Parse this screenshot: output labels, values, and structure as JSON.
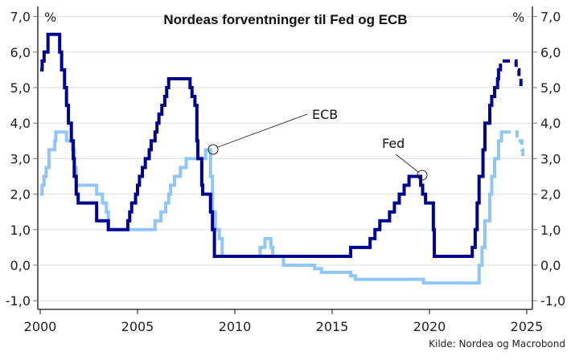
{
  "chart_data": {
    "type": "line",
    "title": "Nordeas forventninger til Fed og ECB",
    "unit_left": "%",
    "unit_right": "%",
    "xlabel": "",
    "ylabel": "%",
    "ylim": [
      -1.0,
      7.0
    ],
    "xlim": [
      2000,
      2025
    ],
    "x_ticks": [
      "2000",
      "2005",
      "2010",
      "2015",
      "2020",
      "2025"
    ],
    "y_ticks": [
      "7,0",
      "6,0",
      "5,0",
      "4,0",
      "3,0",
      "2,0",
      "1,0",
      "0,0",
      "-1,0"
    ],
    "grid": true,
    "source": "Kilde: Nordea og Macrobond",
    "annotations": [
      {
        "label": "ECB",
        "x": 2008.7,
        "y": 3.25
      },
      {
        "label": "Fed",
        "x": 2019.3,
        "y": 2.5
      }
    ],
    "series": [
      {
        "name": "Fed",
        "color": "#00008f",
        "style": "step",
        "points": [
          [
            2000.0,
            5.5
          ],
          [
            2000.1,
            5.75
          ],
          [
            2000.2,
            6.0
          ],
          [
            2000.4,
            6.5
          ],
          [
            2001.0,
            6.0
          ],
          [
            2001.1,
            5.5
          ],
          [
            2001.25,
            5.0
          ],
          [
            2001.35,
            4.5
          ],
          [
            2001.45,
            4.0
          ],
          [
            2001.6,
            3.5
          ],
          [
            2001.7,
            3.0
          ],
          [
            2001.75,
            2.5
          ],
          [
            2001.85,
            2.0
          ],
          [
            2001.95,
            1.75
          ],
          [
            2002.9,
            1.25
          ],
          [
            2003.5,
            1.0
          ],
          [
            2004.5,
            1.25
          ],
          [
            2004.6,
            1.5
          ],
          [
            2004.7,
            1.75
          ],
          [
            2004.9,
            2.0
          ],
          [
            2005.0,
            2.25
          ],
          [
            2005.1,
            2.5
          ],
          [
            2005.25,
            2.75
          ],
          [
            2005.4,
            3.0
          ],
          [
            2005.6,
            3.25
          ],
          [
            2005.7,
            3.5
          ],
          [
            2005.9,
            3.75
          ],
          [
            2006.0,
            4.0
          ],
          [
            2006.1,
            4.25
          ],
          [
            2006.25,
            4.5
          ],
          [
            2006.4,
            4.75
          ],
          [
            2006.5,
            5.0
          ],
          [
            2006.6,
            5.25
          ],
          [
            2007.7,
            5.0
          ],
          [
            2007.8,
            4.75
          ],
          [
            2007.95,
            4.5
          ],
          [
            2008.05,
            3.5
          ],
          [
            2008.1,
            3.0
          ],
          [
            2008.3,
            2.25
          ],
          [
            2008.35,
            2.0
          ],
          [
            2008.75,
            1.5
          ],
          [
            2008.85,
            1.0
          ],
          [
            2008.95,
            0.25
          ],
          [
            2015.95,
            0.5
          ],
          [
            2016.95,
            0.75
          ],
          [
            2017.2,
            1.0
          ],
          [
            2017.45,
            1.25
          ],
          [
            2017.95,
            1.5
          ],
          [
            2018.2,
            1.75
          ],
          [
            2018.45,
            2.0
          ],
          [
            2018.7,
            2.25
          ],
          [
            2018.95,
            2.5
          ],
          [
            2019.55,
            2.25
          ],
          [
            2019.65,
            2.0
          ],
          [
            2019.8,
            1.75
          ],
          [
            2020.2,
            1.0
          ],
          [
            2020.25,
            0.25
          ],
          [
            2022.2,
            0.5
          ],
          [
            2022.35,
            1.0
          ],
          [
            2022.45,
            1.75
          ],
          [
            2022.55,
            2.5
          ],
          [
            2022.75,
            3.25
          ],
          [
            2022.85,
            4.0
          ],
          [
            2023.1,
            4.5
          ],
          [
            2023.2,
            4.75
          ],
          [
            2023.35,
            5.0
          ],
          [
            2023.5,
            5.25
          ],
          [
            2023.55,
            5.5
          ]
        ],
        "forecast": [
          [
            2023.65,
            5.75
          ],
          [
            2024.0,
            5.75
          ],
          [
            2024.45,
            5.5
          ],
          [
            2024.6,
            5.25
          ],
          [
            2024.7,
            5.0
          ]
        ]
      },
      {
        "name": "ECB",
        "color": "#8fc6f5",
        "style": "step",
        "points": [
          [
            2000.0,
            2.0
          ],
          [
            2000.1,
            2.25
          ],
          [
            2000.2,
            2.5
          ],
          [
            2000.3,
            2.75
          ],
          [
            2000.45,
            3.25
          ],
          [
            2000.75,
            3.5
          ],
          [
            2000.8,
            3.75
          ],
          [
            2001.35,
            3.5
          ],
          [
            2001.65,
            3.25
          ],
          [
            2001.75,
            2.75
          ],
          [
            2001.85,
            2.25
          ],
          [
            2002.9,
            2.0
          ],
          [
            2003.2,
            1.75
          ],
          [
            2003.4,
            1.5
          ],
          [
            2003.5,
            1.0
          ],
          [
            2005.9,
            1.25
          ],
          [
            2006.2,
            1.5
          ],
          [
            2006.45,
            1.75
          ],
          [
            2006.6,
            2.0
          ],
          [
            2006.7,
            2.25
          ],
          [
            2006.9,
            2.5
          ],
          [
            2007.2,
            2.75
          ],
          [
            2007.5,
            3.0
          ],
          [
            2008.5,
            3.25
          ],
          [
            2008.75,
            2.5
          ],
          [
            2008.85,
            1.5
          ],
          [
            2009.0,
            1.0
          ],
          [
            2009.2,
            0.75
          ],
          [
            2009.35,
            0.25
          ],
          [
            2011.3,
            0.5
          ],
          [
            2011.55,
            0.75
          ],
          [
            2011.85,
            0.5
          ],
          [
            2011.95,
            0.25
          ],
          [
            2012.5,
            0.0
          ],
          [
            2014.1,
            -0.1
          ],
          [
            2014.45,
            -0.2
          ],
          [
            2015.95,
            -0.3
          ],
          [
            2016.2,
            -0.4
          ],
          [
            2019.7,
            -0.5
          ],
          [
            2022.5,
            -0.5
          ],
          [
            2022.55,
            0.0
          ],
          [
            2022.7,
            0.5
          ],
          [
            2022.85,
            1.25
          ],
          [
            2023.1,
            2.0
          ],
          [
            2023.2,
            2.5
          ],
          [
            2023.35,
            3.0
          ],
          [
            2023.55,
            3.5
          ],
          [
            2023.7,
            3.75
          ]
        ],
        "forecast": [
          [
            2023.85,
            3.75
          ],
          [
            2024.3,
            3.75
          ],
          [
            2024.5,
            3.5
          ],
          [
            2024.7,
            3.5
          ],
          [
            2024.75,
            3.25
          ],
          [
            2024.8,
            3.0
          ]
        ]
      }
    ]
  }
}
